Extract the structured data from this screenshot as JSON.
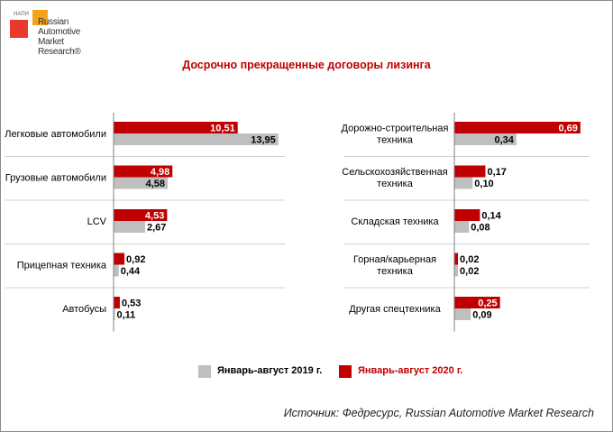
{
  "logo": {
    "small": "НАПИ",
    "lines": [
      "Russian",
      "Automotive",
      "Market",
      "Research®"
    ]
  },
  "title": "Досрочно прекращенные договоры лизинга",
  "legend": {
    "series_2019": "Январь-август 2019 г.",
    "series_2020": "Январь-август 2020 г."
  },
  "source": "Источник: Федресурс, Russian Automotive Market Research",
  "colors": {
    "series_2019": "#bfbfbf",
    "series_2020": "#c00000"
  },
  "chart_data": [
    {
      "type": "bar",
      "orientation": "horizontal",
      "categories": [
        "Легковые автомобили",
        "Грузовые автомобили",
        "LCV",
        "Прицепная техника",
        "Автобусы"
      ],
      "series": [
        {
          "name": "Январь-август 2020 г.",
          "values": [
            10.51,
            4.98,
            4.53,
            0.92,
            0.53
          ]
        },
        {
          "name": "Январь-август 2019 г.",
          "values": [
            13.95,
            4.58,
            2.67,
            0.44,
            0.11
          ]
        }
      ],
      "value_labels": {
        "series_2020": [
          "10,51",
          "4,98",
          "4,53",
          "0,92",
          "0,53"
        ],
        "series_2019": [
          "13,95",
          "4,58",
          "2,67",
          "0,44",
          "0,11"
        ]
      },
      "xlim": [
        0,
        14.5
      ],
      "grid": true
    },
    {
      "type": "bar",
      "orientation": "horizontal",
      "categories": [
        "Дорожно-строительная техника",
        "Сельскохозяйственная техника",
        "Складская техника",
        "Горная/карьерная техника",
        "Другая спецтехника"
      ],
      "series": [
        {
          "name": "Январь-август 2020 г.",
          "values": [
            0.69,
            0.17,
            0.14,
            0.02,
            0.25
          ]
        },
        {
          "name": "Январь-август 2019 г.",
          "values": [
            0.34,
            0.1,
            0.08,
            0.02,
            0.09
          ]
        }
      ],
      "value_labels": {
        "series_2020": [
          "0,69",
          "0,17",
          "0,14",
          "0,02",
          "0,25"
        ],
        "series_2019": [
          "0,34",
          "0,10",
          "0,08",
          "0,02",
          "0,09"
        ]
      },
      "xlim": [
        0,
        0.74
      ],
      "grid": true
    }
  ]
}
